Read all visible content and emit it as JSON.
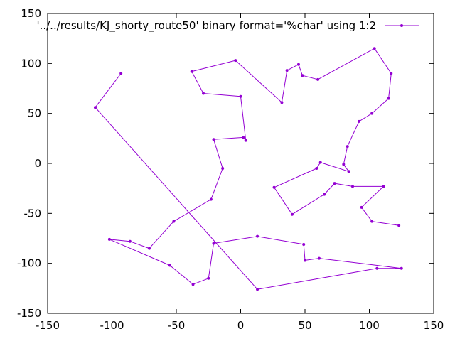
{
  "chart_data": {
    "type": "line",
    "title": "",
    "xlabel": "",
    "ylabel": "",
    "xlim": [
      -150,
      150
    ],
    "ylim": [
      -150,
      150
    ],
    "xticks": [
      -150,
      -100,
      -50,
      0,
      50,
      100,
      150
    ],
    "yticks": [
      -150,
      -100,
      -50,
      0,
      50,
      100,
      150
    ],
    "grid": false,
    "legend_position": "top-right",
    "series": [
      {
        "name": "'../../results/KJ_shorty_route50' binary format='%char' using 1:2",
        "color": "#9400d3",
        "x": [
          -93,
          -113,
          13,
          106,
          125,
          61,
          50,
          49,
          13,
          -21,
          -25,
          -37,
          -55,
          -102,
          -86,
          -71,
          -52,
          -23,
          -14,
          -21,
          2,
          4,
          0,
          -29,
          -38,
          -4,
          32,
          36,
          45,
          48,
          60,
          104,
          117,
          115,
          102,
          92,
          83,
          80,
          84,
          62,
          59,
          26,
          40,
          65,
          73,
          87,
          111,
          94,
          102,
          123
        ],
        "y": [
          90,
          56,
          -126,
          -105,
          -105,
          -95,
          -97,
          -81,
          -73,
          -80,
          -115,
          -121,
          -102,
          -76,
          -78,
          -85,
          -58,
          -36,
          -5,
          24,
          26,
          23,
          67,
          70,
          92,
          103,
          61,
          93,
          99,
          88,
          84,
          115,
          90,
          65,
          50,
          42,
          17,
          -1,
          -8,
          1,
          -5,
          -24,
          -51,
          -31,
          -20,
          -23,
          -23,
          -44,
          -58,
          -62
        ]
      }
    ]
  }
}
